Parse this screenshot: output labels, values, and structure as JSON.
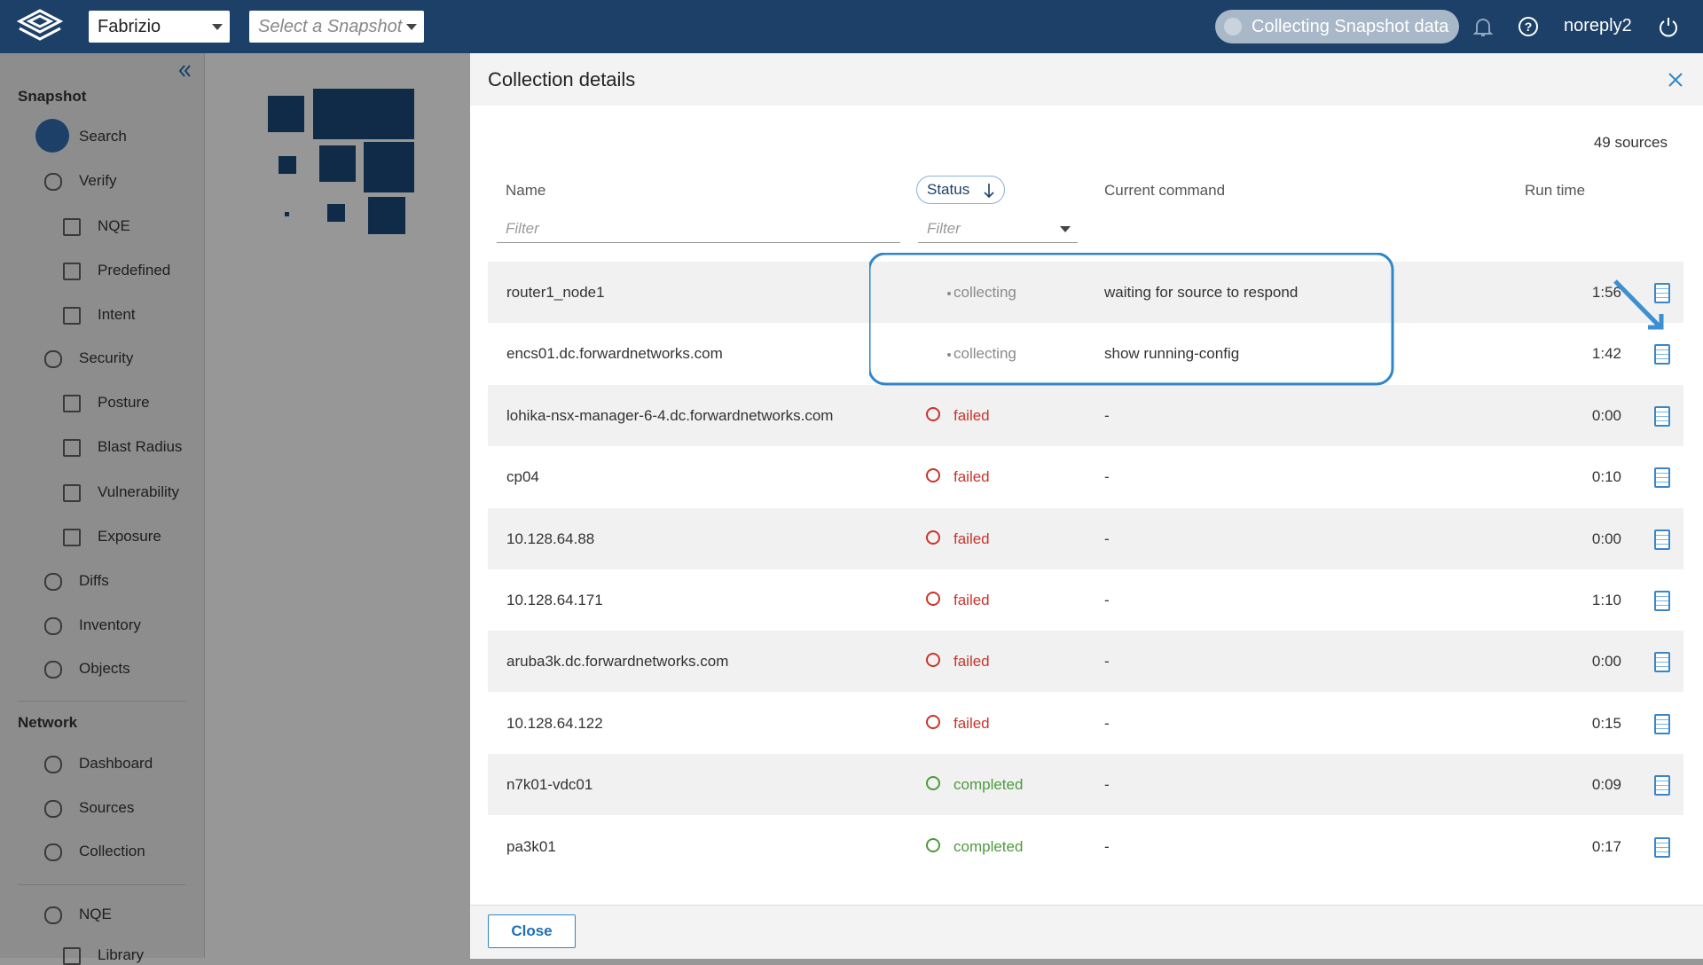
{
  "header": {
    "workspace": "Fabrizio",
    "snapshot_placeholder": "Select a Snapshot",
    "status": "Collecting Snapshot data",
    "user": "noreply2"
  },
  "sidebar": {
    "sections": [
      {
        "title": "Snapshot",
        "items": [
          {
            "label": "Search",
            "level": 0
          },
          {
            "label": "Verify",
            "level": 0
          },
          {
            "label": "NQE",
            "level": 1
          },
          {
            "label": "Predefined",
            "level": 1
          },
          {
            "label": "Intent",
            "level": 1
          },
          {
            "label": "Security",
            "level": 0
          },
          {
            "label": "Posture",
            "level": 1
          },
          {
            "label": "Blast Radius",
            "level": 1
          },
          {
            "label": "Vulnerability",
            "level": 1
          },
          {
            "label": "Exposure",
            "level": 1
          },
          {
            "label": "Diffs",
            "level": 0
          },
          {
            "label": "Inventory",
            "level": 0
          },
          {
            "label": "Objects",
            "level": 0
          }
        ]
      },
      {
        "title": "Network",
        "items": [
          {
            "label": "Dashboard",
            "level": 0
          },
          {
            "label": "Sources",
            "level": 0
          },
          {
            "label": "Collection",
            "level": 0
          }
        ]
      },
      {
        "title": null,
        "items": [
          {
            "label": "NQE",
            "level": 0
          },
          {
            "label": "Library",
            "level": 1
          }
        ]
      }
    ]
  },
  "panel": {
    "title": "Collection details",
    "sources_count": "49 sources",
    "columns": [
      "Name",
      "Status",
      "Current command",
      "Run time"
    ],
    "filter_placeholders": [
      "Filter",
      "Filter"
    ],
    "rows": [
      [
        "router1_node1",
        "collecting",
        "waiting for source to respond",
        "1:56"
      ],
      [
        "encs01.dc.forwardnetworks.com",
        "collecting",
        "show running-config",
        "1:42"
      ],
      [
        "lohika-nsx-manager-6-4.dc.forwardnetworks.com",
        "failed",
        "-",
        "0:00"
      ],
      [
        "cp04",
        "failed",
        "-",
        "0:10"
      ],
      [
        "10.128.64.88",
        "failed",
        "-",
        "0:00"
      ],
      [
        "10.128.64.171",
        "failed",
        "-",
        "1:10"
      ],
      [
        "aruba3k.dc.forwardnetworks.com",
        "failed",
        "-",
        "0:00"
      ],
      [
        "10.128.64.122",
        "failed",
        "-",
        "0:15"
      ],
      [
        "n7k01-vdc01",
        "completed",
        "-",
        "0:09"
      ],
      [
        "pa3k01",
        "completed",
        "-",
        "0:17"
      ]
    ],
    "close_button": "Close"
  }
}
